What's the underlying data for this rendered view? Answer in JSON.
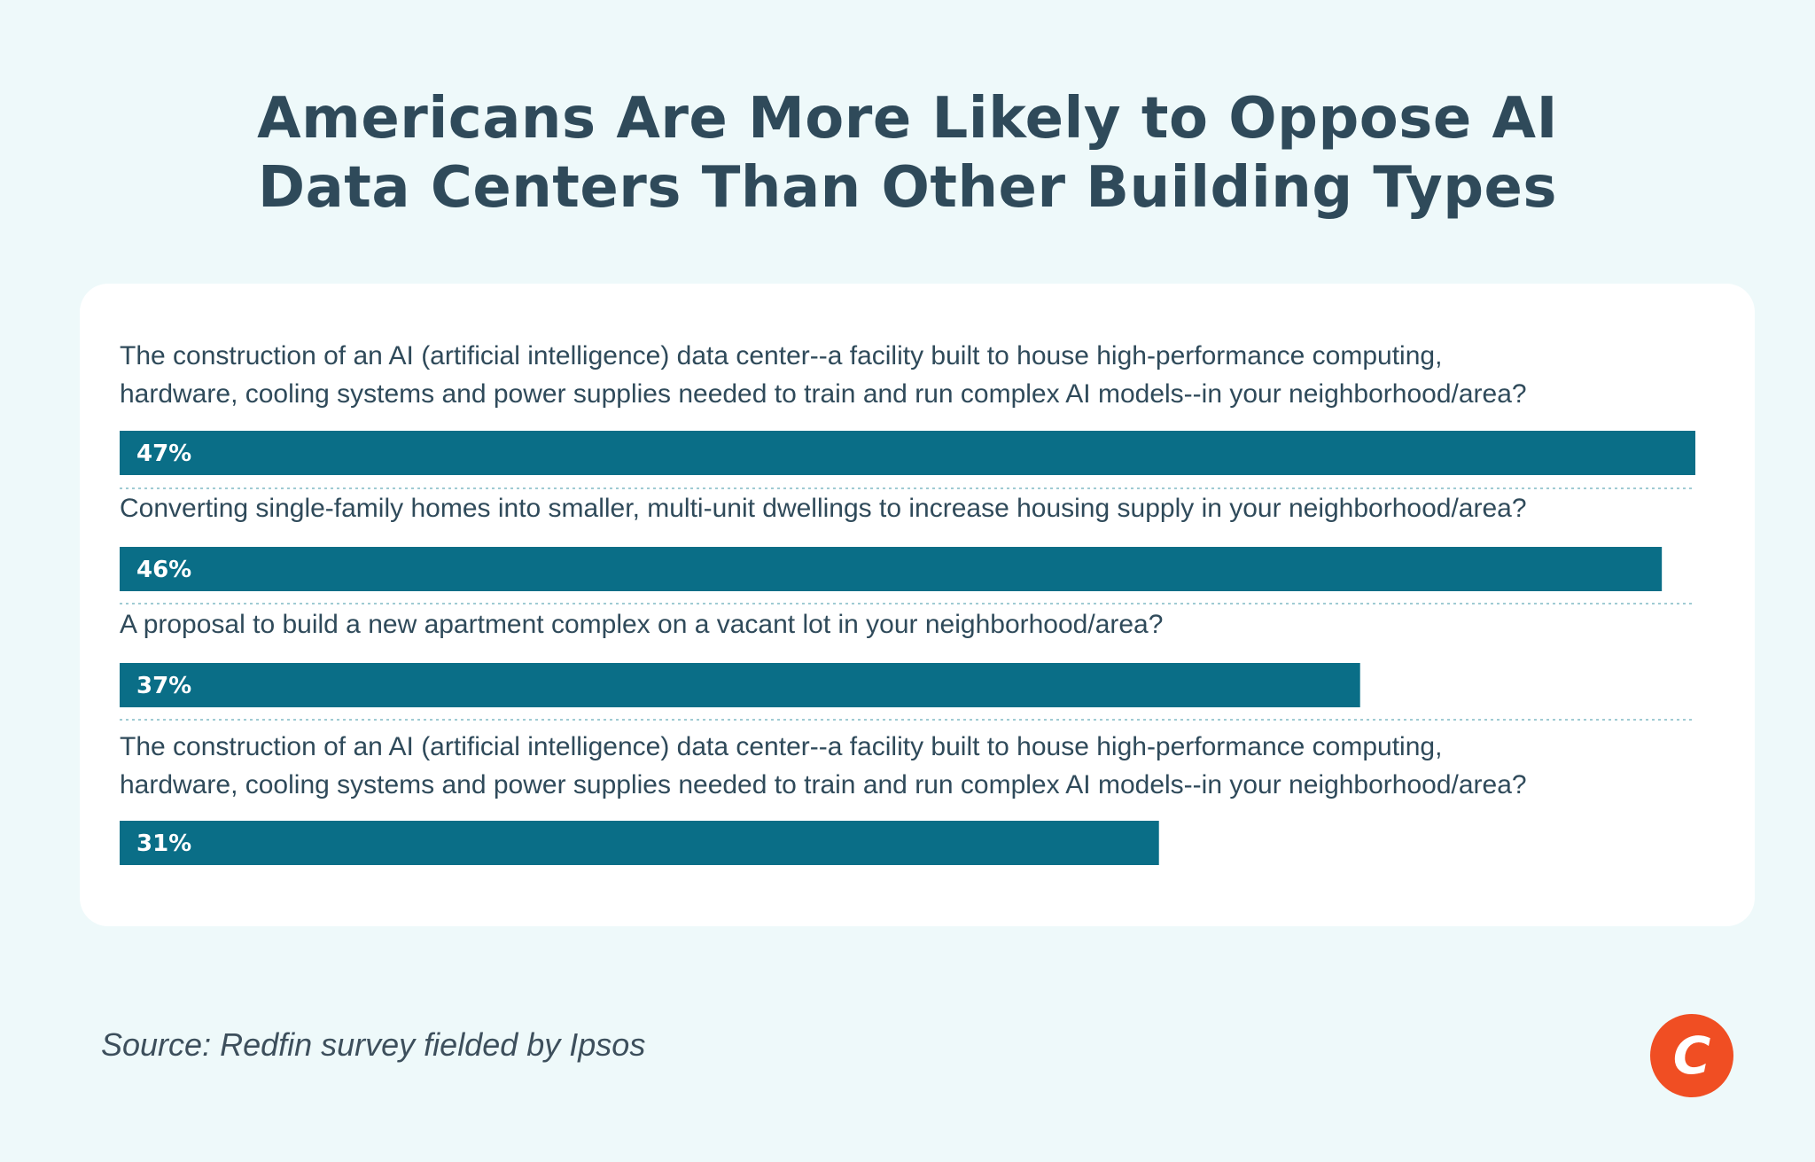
{
  "title_line1": "Americans Are More Likely to Oppose AI",
  "title_line2": "Data Centers Than Other Building Types",
  "source": "Source: Redfin survey fielded by Ipsos",
  "colors": {
    "background": "#eef9fa",
    "bar": "#0a6e87",
    "title": "#2f4a5a",
    "logo": "#f04e23",
    "divider": "#9fcbd3"
  },
  "logo_icon": "c-logo-icon",
  "logo_letter": "C",
  "chart_data": {
    "type": "bar",
    "orientation": "horizontal",
    "categories": [
      [
        "The construction of an AI (artificial intelligence) data center--a facility built to house high-performance computing,",
        "hardware, cooling systems and power supplies needed to train and run complex AI models--in your neighborhood/area?"
      ],
      [
        "Converting single-family homes into smaller, multi-unit dwellings to increase housing supply in your neighborhood/area?"
      ],
      [
        "A proposal to build a new apartment complex on a vacant lot in your neighborhood/area?"
      ],
      [
        "The construction of an AI (artificial intelligence) data center--a facility built to house high-performance computing,",
        "hardware, cooling systems and power supplies needed to train and run complex AI models--in your neighborhood/area?"
      ]
    ],
    "values": [
      47,
      46,
      37,
      31
    ],
    "value_labels": [
      "47%",
      "46%",
      "37%",
      "31%"
    ],
    "unit": "%",
    "xlim": [
      0,
      47
    ],
    "grid": false,
    "legend": "none"
  }
}
